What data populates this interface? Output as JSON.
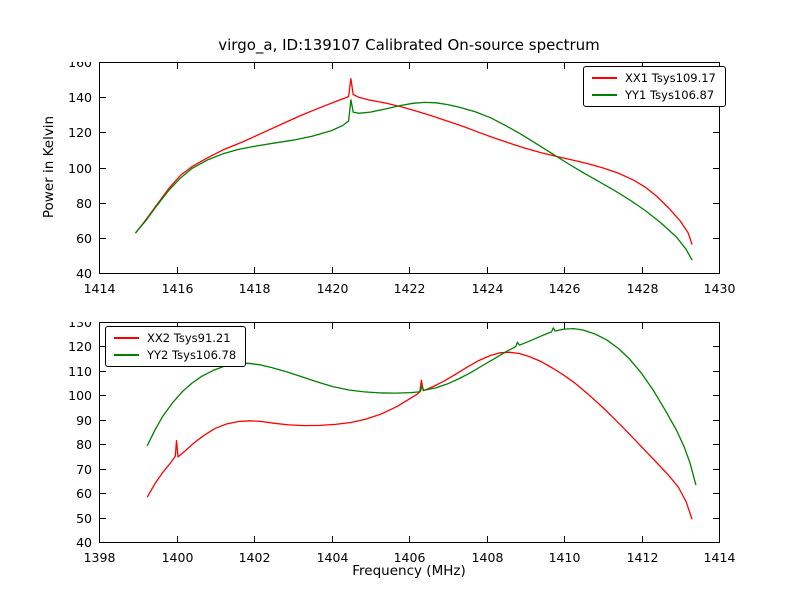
{
  "figure": {
    "title": "virgo_a, ID:139107 Calibrated On-source spectrum",
    "background": "#ffffff",
    "axis_color": "#000000"
  },
  "chart_data": [
    {
      "type": "line",
      "name": "top-spectrum",
      "ylabel": "Power in Kelvin",
      "xlabel": "",
      "xlim": [
        1414,
        1430
      ],
      "ylim": [
        40,
        160
      ],
      "xticks": [
        1414,
        1416,
        1418,
        1420,
        1422,
        1424,
        1426,
        1428,
        1430
      ],
      "yticks": [
        40,
        60,
        80,
        100,
        120,
        140,
        160
      ],
      "grid": false,
      "legend_position": "upper right",
      "legend": [
        {
          "label": "XX1 Tsys109.17",
          "color": "#ff0000"
        },
        {
          "label": "YY1 Tsys106.87",
          "color": "#008000"
        }
      ],
      "series": [
        {
          "name": "XX1 Tsys109.17",
          "color": "#ff0000",
          "points": [
            [
              1414.95,
              63
            ],
            [
              1415.2,
              70
            ],
            [
              1415.5,
              79
            ],
            [
              1415.8,
              88
            ],
            [
              1416.1,
              95.5
            ],
            [
              1416.4,
              100.5
            ],
            [
              1416.8,
              105.5
            ],
            [
              1417.2,
              110
            ],
            [
              1417.7,
              114.5
            ],
            [
              1418.2,
              119.5
            ],
            [
              1418.7,
              124.5
            ],
            [
              1419.2,
              129.5
            ],
            [
              1419.7,
              134
            ],
            [
              1420.1,
              137.5
            ],
            [
              1420.35,
              139.5
            ],
            [
              1420.44,
              140.3
            ],
            [
              1420.5,
              150.5
            ],
            [
              1420.56,
              141.5
            ],
            [
              1420.7,
              140
            ],
            [
              1421,
              138.3
            ],
            [
              1421.4,
              136.6
            ],
            [
              1421.8,
              134.6
            ],
            [
              1422.2,
              132
            ],
            [
              1422.6,
              129.3
            ],
            [
              1423,
              126.3
            ],
            [
              1423.4,
              123.3
            ],
            [
              1423.8,
              120
            ],
            [
              1424.2,
              116.8
            ],
            [
              1424.6,
              113.8
            ],
            [
              1425,
              111
            ],
            [
              1425.4,
              108.5
            ],
            [
              1425.8,
              106.3
            ],
            [
              1426.2,
              104.3
            ],
            [
              1426.6,
              102.3
            ],
            [
              1427,
              99.8
            ],
            [
              1427.4,
              96.8
            ],
            [
              1427.8,
              92.8
            ],
            [
              1428.1,
              88.8
            ],
            [
              1428.4,
              83.5
            ],
            [
              1428.7,
              77
            ],
            [
              1429,
              69.5
            ],
            [
              1429.2,
              63
            ],
            [
              1429.3,
              56.5
            ]
          ]
        },
        {
          "name": "YY1 Tsys106.87",
          "color": "#008000",
          "points": [
            [
              1414.95,
              63
            ],
            [
              1415.2,
              69.5
            ],
            [
              1415.5,
              78.5
            ],
            [
              1415.8,
              87
            ],
            [
              1416.1,
              94
            ],
            [
              1416.4,
              99.5
            ],
            [
              1416.8,
              104.3
            ],
            [
              1417.2,
              107.8
            ],
            [
              1417.6,
              110.3
            ],
            [
              1418,
              112
            ],
            [
              1418.5,
              113.8
            ],
            [
              1419,
              115.5
            ],
            [
              1419.5,
              117.8
            ],
            [
              1420,
              121
            ],
            [
              1420.3,
              124
            ],
            [
              1420.44,
              126.5
            ],
            [
              1420.5,
              138.5
            ],
            [
              1420.56,
              131.5
            ],
            [
              1420.7,
              130.8
            ],
            [
              1421,
              131.5
            ],
            [
              1421.4,
              133.3
            ],
            [
              1421.8,
              135.3
            ],
            [
              1422.1,
              136.5
            ],
            [
              1422.4,
              137
            ],
            [
              1422.7,
              136.8
            ],
            [
              1423,
              135.8
            ],
            [
              1423.3,
              134.3
            ],
            [
              1423.7,
              131.8
            ],
            [
              1424.1,
              128.3
            ],
            [
              1424.5,
              123.8
            ],
            [
              1424.9,
              118.8
            ],
            [
              1425.3,
              113.3
            ],
            [
              1425.7,
              107.8
            ],
            [
              1426.1,
              102.3
            ],
            [
              1426.5,
              97
            ],
            [
              1426.9,
              92
            ],
            [
              1427.3,
              87
            ],
            [
              1427.7,
              81.5
            ],
            [
              1428.1,
              75.5
            ],
            [
              1428.5,
              68.5
            ],
            [
              1428.9,
              60.5
            ],
            [
              1429.15,
              53.5
            ],
            [
              1429.3,
              47.5
            ]
          ]
        }
      ]
    },
    {
      "type": "line",
      "name": "bottom-spectrum",
      "ylabel": "",
      "xlabel": "Frequency (MHz)",
      "xlim": [
        1398,
        1414
      ],
      "ylim": [
        40,
        130
      ],
      "xticks": [
        1398,
        1400,
        1402,
        1404,
        1406,
        1408,
        1410,
        1412,
        1414
      ],
      "yticks": [
        40,
        50,
        60,
        70,
        80,
        90,
        100,
        110,
        120,
        130
      ],
      "grid": false,
      "legend_position": "upper left",
      "legend": [
        {
          "label": "XX2 Tsys91.21",
          "color": "#ff0000"
        },
        {
          "label": "YY2 Tsys106.78",
          "color": "#008000"
        }
      ],
      "series": [
        {
          "name": "XX2 Tsys91.21",
          "color": "#ff0000",
          "points": [
            [
              1399.25,
              58.5
            ],
            [
              1399.45,
              64
            ],
            [
              1399.65,
              68.5
            ],
            [
              1399.85,
              72.5
            ],
            [
              1399.97,
              75
            ],
            [
              1400.0,
              81.5
            ],
            [
              1400.04,
              74.8
            ],
            [
              1400.2,
              77
            ],
            [
              1400.45,
              80.5
            ],
            [
              1400.7,
              83.5
            ],
            [
              1401,
              86.5
            ],
            [
              1401.3,
              88.3
            ],
            [
              1401.6,
              89.3
            ],
            [
              1401.9,
              89.6
            ],
            [
              1402.2,
              89.3
            ],
            [
              1402.5,
              88.6
            ],
            [
              1402.9,
              87.9
            ],
            [
              1403.3,
              87.6
            ],
            [
              1403.7,
              87.7
            ],
            [
              1404.1,
              88.1
            ],
            [
              1404.5,
              88.9
            ],
            [
              1404.9,
              90.3
            ],
            [
              1405.3,
              92.5
            ],
            [
              1405.7,
              95.5
            ],
            [
              1406,
              98.4
            ],
            [
              1406.2,
              100.4
            ],
            [
              1406.28,
              101.4
            ],
            [
              1406.32,
              106.2
            ],
            [
              1406.37,
              101.9
            ],
            [
              1406.6,
              103.4
            ],
            [
              1406.9,
              105.8
            ],
            [
              1407.2,
              108.6
            ],
            [
              1407.5,
              111.5
            ],
            [
              1407.8,
              114.2
            ],
            [
              1408.1,
              116.3
            ],
            [
              1408.35,
              117.4
            ],
            [
              1408.6,
              117.6
            ],
            [
              1408.85,
              117.1
            ],
            [
              1409.1,
              115.9
            ],
            [
              1409.4,
              113.9
            ],
            [
              1409.7,
              111.2
            ],
            [
              1410,
              108.2
            ],
            [
              1410.3,
              104.8
            ],
            [
              1410.6,
              100.8
            ],
            [
              1410.9,
              96.5
            ],
            [
              1411.2,
              92
            ],
            [
              1411.5,
              87.2
            ],
            [
              1411.8,
              82.3
            ],
            [
              1412.1,
              77.3
            ],
            [
              1412.4,
              72.3
            ],
            [
              1412.7,
              67.3
            ],
            [
              1412.95,
              62.5
            ],
            [
              1413.15,
              56.5
            ],
            [
              1413.3,
              49.5
            ]
          ]
        },
        {
          "name": "YY2 Tsys106.78",
          "color": "#008000",
          "points": [
            [
              1399.25,
              79.5
            ],
            [
              1399.45,
              86
            ],
            [
              1399.65,
              91.5
            ],
            [
              1399.9,
              97
            ],
            [
              1400.15,
              101.5
            ],
            [
              1400.4,
              105
            ],
            [
              1400.65,
              107.8
            ],
            [
              1400.95,
              110.2
            ],
            [
              1401.25,
              112
            ],
            [
              1401.55,
              113
            ],
            [
              1401.85,
              113.1
            ],
            [
              1402.15,
              112.5
            ],
            [
              1402.45,
              111.4
            ],
            [
              1402.85,
              109.6
            ],
            [
              1403.25,
              107.5
            ],
            [
              1403.65,
              105.4
            ],
            [
              1404.05,
              103.5
            ],
            [
              1404.45,
              102.2
            ],
            [
              1404.85,
              101.4
            ],
            [
              1405.25,
              101
            ],
            [
              1405.65,
              100.9
            ],
            [
              1406.05,
              101.1
            ],
            [
              1406.25,
              101.4
            ],
            [
              1406.3,
              101.7
            ],
            [
              1406.33,
              103.9
            ],
            [
              1406.38,
              102
            ],
            [
              1406.7,
              103.1
            ],
            [
              1407,
              104.7
            ],
            [
              1407.3,
              106.9
            ],
            [
              1407.6,
              109.4
            ],
            [
              1407.9,
              112.2
            ],
            [
              1408.2,
              115
            ],
            [
              1408.5,
              117.8
            ],
            [
              1408.75,
              119.9
            ],
            [
              1408.8,
              121.7
            ],
            [
              1408.85,
              120.5
            ],
            [
              1409.1,
              122.1
            ],
            [
              1409.4,
              124.2
            ],
            [
              1409.6,
              125.5
            ],
            [
              1409.68,
              126
            ],
            [
              1409.72,
              127.6
            ],
            [
              1409.77,
              126.3
            ],
            [
              1410,
              127.1
            ],
            [
              1410.25,
              127.3
            ],
            [
              1410.5,
              126.7
            ],
            [
              1410.8,
              125.1
            ],
            [
              1411.1,
              122.7
            ],
            [
              1411.4,
              119.2
            ],
            [
              1411.7,
              114.7
            ],
            [
              1412,
              109
            ],
            [
              1412.3,
              102.2
            ],
            [
              1412.6,
              94.3
            ],
            [
              1412.9,
              85.8
            ],
            [
              1413.1,
              79
            ],
            [
              1413.25,
              72.5
            ],
            [
              1413.4,
              63.5
            ]
          ]
        }
      ]
    }
  ]
}
